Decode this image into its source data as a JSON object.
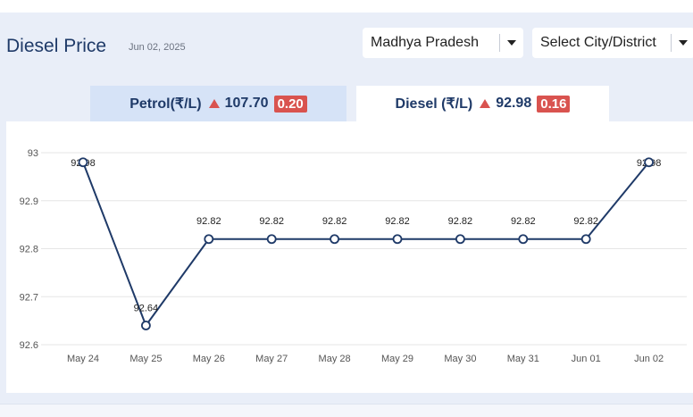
{
  "header": {
    "title": "Diesel Price",
    "date": "Jun 02, 2025"
  },
  "filters": {
    "state": "Madhya Pradesh",
    "city_placeholder": "Select City/District"
  },
  "tabs": [
    {
      "label": "Petrol(₹/L)",
      "price": "107.70",
      "change": "0.20"
    },
    {
      "label": "Diesel (₹/L)",
      "price": "92.98",
      "change": "0.16"
    }
  ],
  "colors": {
    "line": "#1f3a68",
    "up_arrow": "#d9534f",
    "badge": "#d9534f",
    "active_tab": "#ffffff",
    "inactive_tab": "#d6e3f7"
  },
  "chart_data": {
    "type": "line",
    "categories": [
      "May 24",
      "May 25",
      "May 26",
      "May 27",
      "May 28",
      "May 29",
      "May 30",
      "May 31",
      "Jun 01",
      "Jun 02"
    ],
    "values": [
      92.98,
      92.64,
      92.82,
      92.82,
      92.82,
      92.82,
      92.82,
      92.82,
      92.82,
      92.98
    ],
    "data_labels": [
      "92.98",
      "92.64",
      "92.82",
      "92.82",
      "92.82",
      "92.82",
      "92.82",
      "92.82",
      "92.82",
      "92.98"
    ],
    "ylim": [
      92.6,
      93.0
    ],
    "yticks": [
      92.6,
      92.7,
      92.8,
      92.9,
      93
    ],
    "ytick_labels": [
      "92.6",
      "92.7",
      "92.8",
      "92.9",
      "93"
    ],
    "grid": true,
    "legend": "none"
  }
}
